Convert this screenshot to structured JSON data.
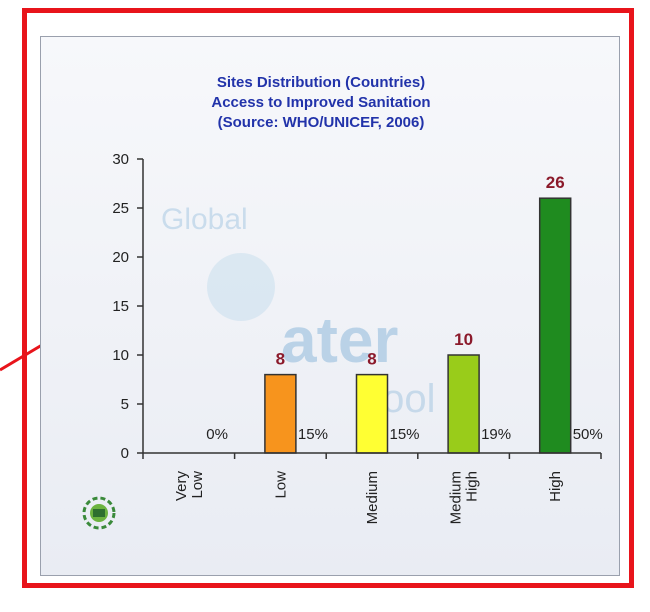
{
  "chart_data": {
    "type": "bar",
    "title": [
      "Sites Distribution (Countries)",
      "Access to Improved Sanitation",
      "(Source: WHO/UNICEF, 2006)"
    ],
    "categories": [
      [
        "Very",
        "Low"
      ],
      [
        "Low"
      ],
      [
        "Medium"
      ],
      [
        "Medium",
        "High"
      ],
      [
        "High"
      ]
    ],
    "values": [
      0,
      8,
      8,
      10,
      26
    ],
    "value_labels": [
      "",
      "8",
      "8",
      "10",
      "26"
    ],
    "percent_labels": [
      "0%",
      "15%",
      "15%",
      "19%",
      "50%"
    ],
    "bar_colors": [
      "#ffffff",
      "#f7941d",
      "#ffff33",
      "#99cc1a",
      "#1f8b1f"
    ],
    "ylim": [
      0,
      30
    ],
    "yticks": [
      0,
      5,
      10,
      15,
      20,
      25,
      30
    ],
    "grid": false,
    "legend": "none",
    "title_color": "#2233aa",
    "value_label_color": "#8b1a2b"
  },
  "watermark": {
    "line1": "Global",
    "line2": "ater",
    "line3": "tool"
  }
}
